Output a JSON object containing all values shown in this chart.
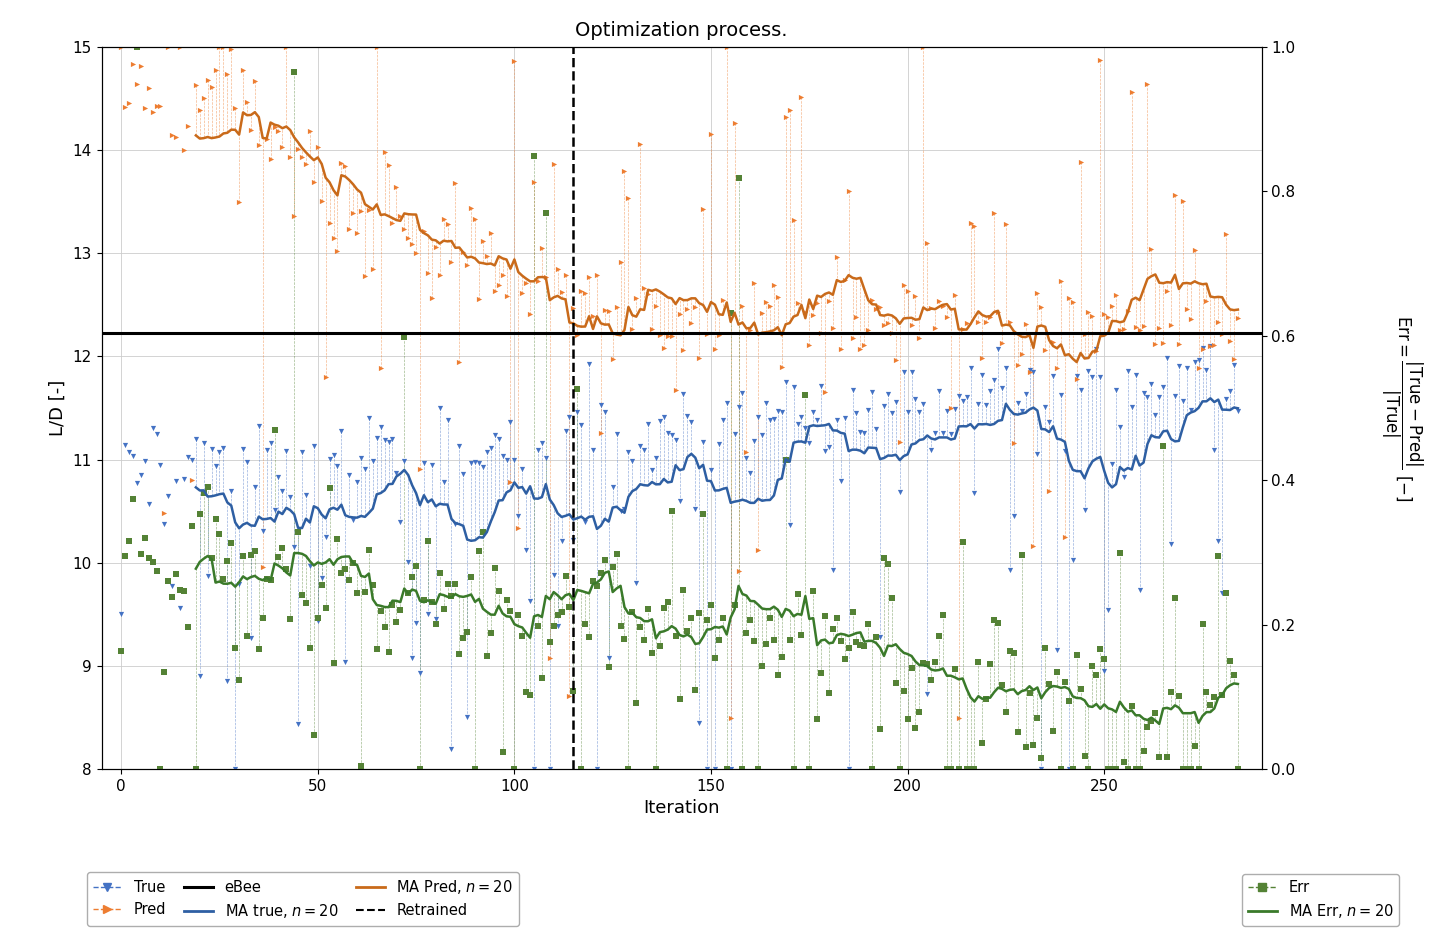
{
  "title": "Optimization process.",
  "xlabel": "Iteration",
  "ylabel_left": "L/D [-]",
  "ebee_value": 12.23,
  "retrained_iter": 115,
  "n_iter": 285,
  "n_ma": 20,
  "ylim_left": [
    8.0,
    15.0
  ],
  "ylim_right": [
    0.0,
    1.0
  ],
  "xlim": [
    -5,
    290
  ],
  "xticks": [
    0,
    50,
    100,
    150,
    200,
    250
  ],
  "yticks_left": [
    8,
    9,
    10,
    11,
    12,
    13,
    14,
    15
  ],
  "yticks_right": [
    0.0,
    0.2,
    0.4,
    0.6,
    0.8,
    1.0
  ],
  "colors": {
    "true": "#4472C4",
    "pred": "#ED7D31",
    "err": "#548235",
    "ma_true": "#2E5FA3",
    "ma_pred": "#C96A1A",
    "ma_err": "#3A7A2A",
    "ebee": "#000000",
    "retrained": "#000000",
    "grid": "#CCCCCC"
  },
  "figsize": [
    14.5,
    9.38
  ],
  "dpi": 100,
  "seed": 123
}
